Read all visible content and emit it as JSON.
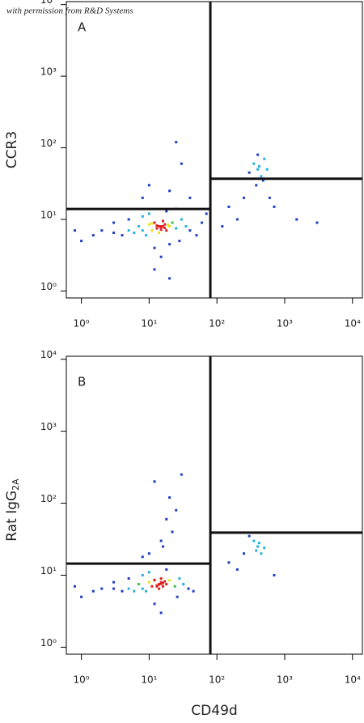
{
  "watermark": "with permission from R&D Systems",
  "chart_data": [
    {
      "type": "scatter",
      "panel_label": "A",
      "ylabel": {
        "text": "CCR3"
      },
      "log_x": true,
      "log_y": true,
      "colors": [
        "#1f3fbf",
        "#25b0e0",
        "#3cc24a",
        "#e8e020",
        "#e02020"
      ],
      "xlim": [
        0.6,
        14000
      ],
      "ylim": [
        0.8,
        11000
      ],
      "xticks": [
        {
          "value": 1,
          "label": "10⁰"
        },
        {
          "value": 10,
          "label": "10¹"
        },
        {
          "value": 100,
          "label": "10²"
        },
        {
          "value": 1000,
          "label": "10³"
        },
        {
          "value": 10000,
          "label": "10⁴"
        }
      ],
      "yticks": [
        {
          "value": 1,
          "label": "10⁰"
        },
        {
          "value": 10,
          "label": "10¹"
        },
        {
          "value": 100,
          "label": "10²"
        },
        {
          "value": 1000,
          "label": "10³"
        },
        {
          "value": 10000,
          "label": "10⁴"
        }
      ],
      "gate": {
        "x": 80,
        "y_left": 14,
        "y_right": 37
      },
      "x": [
        15,
        13,
        17,
        12,
        18,
        14,
        16,
        11,
        20,
        10,
        22,
        9,
        25,
        8,
        7,
        6,
        5,
        4,
        3,
        2,
        1.5,
        30,
        35,
        40,
        28,
        12,
        15,
        20,
        10,
        18,
        25,
        8,
        5,
        3,
        1,
        0.8,
        50,
        60,
        70,
        12,
        20,
        14,
        16,
        15,
        13,
        17,
        19,
        11,
        15,
        20,
        40,
        10,
        30,
        25,
        8,
        400,
        350,
        450,
        500,
        380,
        420,
        300,
        550,
        400,
        480,
        150,
        200,
        250,
        700,
        1500,
        3000,
        120,
        600
      ],
      "y": [
        8,
        7.5,
        8.5,
        9,
        7,
        6.5,
        9.5,
        7,
        8,
        8.5,
        9,
        6,
        7.5,
        7,
        8,
        6.5,
        7,
        6,
        6.5,
        7,
        6,
        10,
        8,
        7,
        5,
        4,
        3,
        4.5,
        12,
        13,
        14,
        11,
        10,
        9,
        5,
        7,
        6,
        9,
        12,
        2,
        1.5,
        8,
        8,
        7.8,
        8.2,
        7.6,
        8.4,
        8.8,
        7.2,
        25,
        20,
        30,
        60,
        120,
        20,
        50,
        60,
        40,
        70,
        30,
        55,
        45,
        50,
        80,
        35,
        15,
        10,
        20,
        15,
        10,
        9,
        8,
        20
      ]
    },
    {
      "type": "scatter",
      "panel_label": "B",
      "ylabel": {
        "text": "Rat IgG",
        "sub": "2A"
      },
      "xlabel": "CD49d",
      "log_x": true,
      "log_y": true,
      "colors": [
        "#1f3fbf",
        "#25b0e0",
        "#3cc24a",
        "#e8e020",
        "#e02020"
      ],
      "xlim": [
        0.6,
        14000
      ],
      "ylim": [
        0.8,
        11000
      ],
      "xticks": [
        {
          "value": 1,
          "label": "10⁰"
        },
        {
          "value": 10,
          "label": "10¹"
        },
        {
          "value": 100,
          "label": "10²"
        },
        {
          "value": 1000,
          "label": "10³"
        },
        {
          "value": 10000,
          "label": "10⁴"
        }
      ],
      "yticks": [
        {
          "value": 1,
          "label": "10⁰"
        },
        {
          "value": 10,
          "label": "10¹"
        },
        {
          "value": 100,
          "label": "10²"
        },
        {
          "value": 1000,
          "label": "10³"
        },
        {
          "value": 10000,
          "label": "10⁴"
        }
      ],
      "gate": {
        "x": 80,
        "y_left": 14.5,
        "y_right": 39
      },
      "x": [
        14,
        13,
        15,
        12,
        16,
        14,
        15,
        11,
        18,
        10,
        20,
        9,
        24,
        8,
        7,
        6,
        5,
        4,
        3,
        2,
        1.5,
        28,
        32,
        38,
        26,
        12,
        15,
        10,
        18,
        8,
        5,
        3,
        1,
        0.8,
        45,
        14,
        16,
        13,
        15,
        17,
        12,
        15,
        18,
        20,
        12,
        16,
        25,
        10,
        30,
        22,
        8,
        400,
        350,
        450,
        380,
        420,
        300,
        500,
        150,
        200,
        250,
        700
      ],
      "y": [
        7.5,
        7,
        8,
        8.5,
        7,
        6.5,
        9,
        7,
        7.5,
        8,
        8.5,
        6,
        7,
        6.5,
        7.5,
        6,
        6.5,
        6,
        6.5,
        6.5,
        6,
        9,
        7.5,
        6.5,
        5,
        4,
        3,
        11,
        12,
        10,
        9,
        8,
        5,
        7,
        6,
        7.4,
        7.8,
        7.2,
        7.6,
        8.2,
        8.6,
        30,
        60,
        120,
        200,
        25,
        80,
        20,
        250,
        40,
        18,
        25,
        30,
        20,
        22,
        28,
        35,
        24,
        15,
        12,
        20,
        10
      ]
    }
  ]
}
